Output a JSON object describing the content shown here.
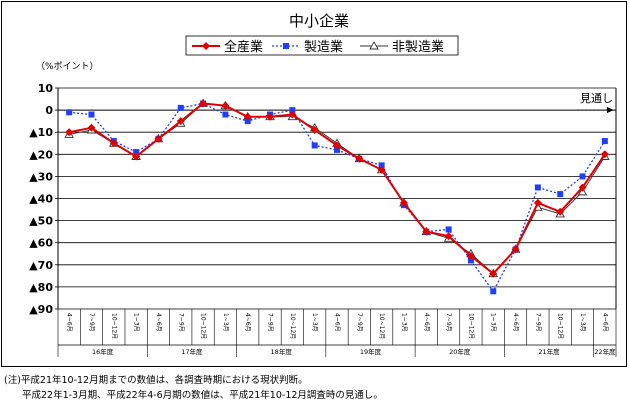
{
  "chart_data": {
    "type": "line",
    "title": "中小企業",
    "ylabel": "（%ポイント）",
    "ylim": [
      -90,
      10
    ],
    "ytick_labels": [
      {
        "value": 10,
        "label": "10"
      },
      {
        "value": 0,
        "label": "0"
      },
      {
        "value": -10,
        "label": "▲10"
      },
      {
        "value": -20,
        "label": "▲20"
      },
      {
        "value": -30,
        "label": "▲30"
      },
      {
        "value": -40,
        "label": "▲40"
      },
      {
        "value": -50,
        "label": "▲50"
      },
      {
        "value": -60,
        "label": "▲60"
      },
      {
        "value": -70,
        "label": "▲70"
      },
      {
        "value": -80,
        "label": "▲80"
      },
      {
        "value": -90,
        "label": "▲90"
      }
    ],
    "categories": [
      "4~6月",
      "7~9月",
      "10~12月",
      "1~3月",
      "4~6月",
      "7~9月",
      "10~12月",
      "1~3月",
      "4~6月",
      "7~9月",
      "10~12月",
      "1~3月",
      "4~6月",
      "7~9月",
      "10~12月",
      "1~3月",
      "4~6月",
      "7~9月",
      "10~12月",
      "1~3月",
      "4~6月",
      "7~9月",
      "10~12月",
      "1~3月",
      "4~6月"
    ],
    "fiscal_years": [
      {
        "label": "16年度",
        "count": 4
      },
      {
        "label": "17年度",
        "count": 4
      },
      {
        "label": "18年度",
        "count": 4
      },
      {
        "label": "19年度",
        "count": 4
      },
      {
        "label": "20年度",
        "count": 4
      },
      {
        "label": "21年度",
        "count": 4
      },
      {
        "label": "22年度",
        "count": 1
      }
    ],
    "grid": true,
    "legend_position": "top-center",
    "forecast_label": "見通し",
    "series": [
      {
        "name": "全産業",
        "color": "#e00000",
        "style": "solid",
        "marker": "diamond",
        "values": [
          -10,
          -8,
          -15,
          -21,
          -13,
          -5,
          3,
          2,
          -3,
          -3,
          -2,
          -9,
          -16,
          -22,
          -27,
          -42,
          -55,
          -57,
          -66,
          -74,
          -63,
          -42,
          -46,
          -35,
          -20
        ]
      },
      {
        "name": "製造業",
        "color": "#1f3fff",
        "style": "dotted",
        "marker": "square",
        "values": [
          -1,
          -2,
          -14,
          -19,
          -13,
          1,
          3,
          -2,
          -5,
          -2,
          0,
          -16,
          -18,
          -22,
          -25,
          -43,
          -55,
          -54,
          -68,
          -82,
          -63,
          -35,
          -38,
          -30,
          -14
        ]
      },
      {
        "name": "非製造業",
        "color": "#333333",
        "style": "solid",
        "marker": "triangle",
        "values": [
          -11,
          -9,
          -15,
          -21,
          -13,
          -6,
          3,
          2,
          -3,
          -3,
          -3,
          -8,
          -15,
          -22,
          -27,
          -42,
          -55,
          -58,
          -65,
          -74,
          -63,
          -44,
          -47,
          -37,
          -21
        ]
      }
    ]
  },
  "notes": [
    "(注)平成21年10-12月期までの数値は、各調査時期における現状判断。",
    "平成22年1-3月期、平成22年4-6月期の数値は、平成21年10-12月調査時の見通し。"
  ]
}
